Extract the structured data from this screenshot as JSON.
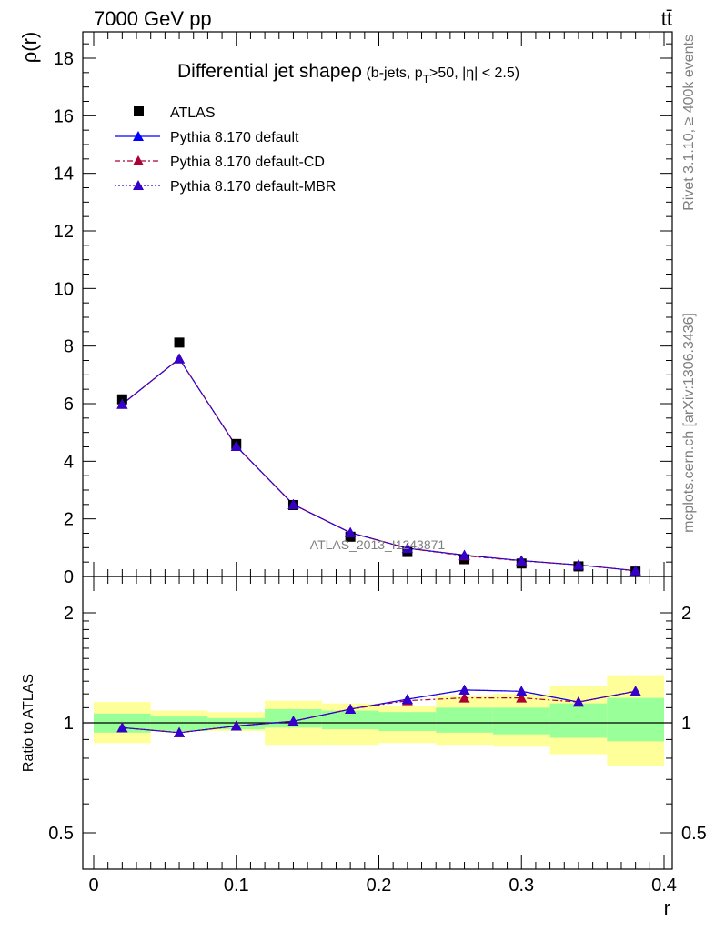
{
  "header": {
    "energy": "7000 GeV pp",
    "process": "tt̄",
    "rivet": "Rivet 3.1.10, ≥ 400k events",
    "mcplots": "mcplots.cern.ch [arXiv:1306.3436]",
    "watermark": "ATLAS_2013_I1243871"
  },
  "colors": {
    "atlas": "#000000",
    "default": "#0000ff",
    "default_cd": "#aa0033",
    "default_mbr": "#3300cc",
    "band_inner": "#99ff99",
    "band_outer": "#ffff99"
  },
  "chart_data": [
    {
      "type": "line",
      "title_main": "Differential jet shapeρ",
      "title_sub": " (b-jets, p",
      "title_sub_T": "T",
      "title_sub_rest": ">50, |η| < 2.5)",
      "ylabel": "ρ(r)",
      "xlim": [
        -0.01,
        0.405
      ],
      "ylim": [
        0,
        19
      ],
      "yticks": [
        "0",
        "2",
        "4",
        "6",
        "8",
        "10",
        "12",
        "14",
        "16",
        "18"
      ],
      "yticks_values": [
        0,
        2,
        4,
        6,
        8,
        10,
        12,
        14,
        16,
        18
      ],
      "legend": {
        "atlas": "ATLAS",
        "default": "Pythia 8.170 default",
        "default_cd": "Pythia 8.170 default-CD",
        "default_mbr": "Pythia 8.170 default-MBR"
      },
      "x": [
        0.02,
        0.06,
        0.1,
        0.14,
        0.18,
        0.22,
        0.26,
        0.3,
        0.34,
        0.38
      ],
      "atlas": [
        6.15,
        8.12,
        4.6,
        2.48,
        1.38,
        0.85,
        0.6,
        0.45,
        0.35,
        0.17
      ],
      "series": [
        {
          "name": "Pythia 8.170 default",
          "values": [
            5.98,
            7.56,
            4.52,
            2.5,
            1.52,
            0.98,
            0.74,
            0.55,
            0.4,
            0.2
          ]
        },
        {
          "name": "Pythia 8.170 default-CD",
          "values": [
            5.98,
            7.56,
            4.52,
            2.5,
            1.52,
            0.98,
            0.72,
            0.54,
            0.4,
            0.2
          ]
        },
        {
          "name": "Pythia 8.170 default-MBR",
          "values": [
            5.98,
            7.56,
            4.52,
            2.5,
            1.52,
            0.98,
            0.74,
            0.55,
            0.4,
            0.2
          ]
        }
      ]
    },
    {
      "type": "line",
      "ylabel": "Ratio to ATLAS",
      "xlabel": "r",
      "scale": "log",
      "ylim": [
        0.4,
        2.4
      ],
      "yticks": [
        "0.5",
        "1",
        "2"
      ],
      "yticks_values": [
        0.5,
        1,
        2
      ],
      "xticks": [
        "0",
        "0.1",
        "0.2",
        "0.3",
        "0.4"
      ],
      "xticks_values": [
        0,
        0.1,
        0.2,
        0.3,
        0.4
      ],
      "bins": [
        [
          0,
          0.04
        ],
        [
          0.04,
          0.08
        ],
        [
          0.08,
          0.12
        ],
        [
          0.12,
          0.16
        ],
        [
          0.16,
          0.2
        ],
        [
          0.2,
          0.24
        ],
        [
          0.24,
          0.28
        ],
        [
          0.28,
          0.32
        ],
        [
          0.32,
          0.36
        ],
        [
          0.36,
          0.4
        ]
      ],
      "band_inner": [
        [
          0.94,
          1.06
        ],
        [
          0.95,
          1.04
        ],
        [
          0.96,
          1.03
        ],
        [
          0.97,
          1.09
        ],
        [
          0.96,
          1.08
        ],
        [
          0.95,
          1.07
        ],
        [
          0.94,
          1.1
        ],
        [
          0.93,
          1.1
        ],
        [
          0.91,
          1.13
        ],
        [
          0.89,
          1.17
        ]
      ],
      "band_outer": [
        [
          0.88,
          1.14
        ],
        [
          0.95,
          1.08
        ],
        [
          0.95,
          1.07
        ],
        [
          0.87,
          1.15
        ],
        [
          0.87,
          1.13
        ],
        [
          0.88,
          1.11
        ],
        [
          0.87,
          1.19
        ],
        [
          0.86,
          1.2
        ],
        [
          0.82,
          1.26
        ],
        [
          0.76,
          1.35
        ]
      ],
      "series": [
        {
          "name": "Pythia 8.170 default",
          "values": [
            0.97,
            0.94,
            0.98,
            1.01,
            1.09,
            1.16,
            1.23,
            1.22,
            1.14,
            1.22
          ]
        },
        {
          "name": "Pythia 8.170 default-CD",
          "values": [
            0.97,
            0.94,
            0.98,
            1.01,
            1.09,
            1.15,
            1.17,
            1.17,
            1.14,
            1.22
          ]
        },
        {
          "name": "Pythia 8.170 default-MBR",
          "values": [
            0.97,
            0.94,
            0.98,
            1.01,
            1.09,
            1.16,
            1.23,
            1.22,
            1.14,
            1.22
          ]
        }
      ]
    }
  ]
}
